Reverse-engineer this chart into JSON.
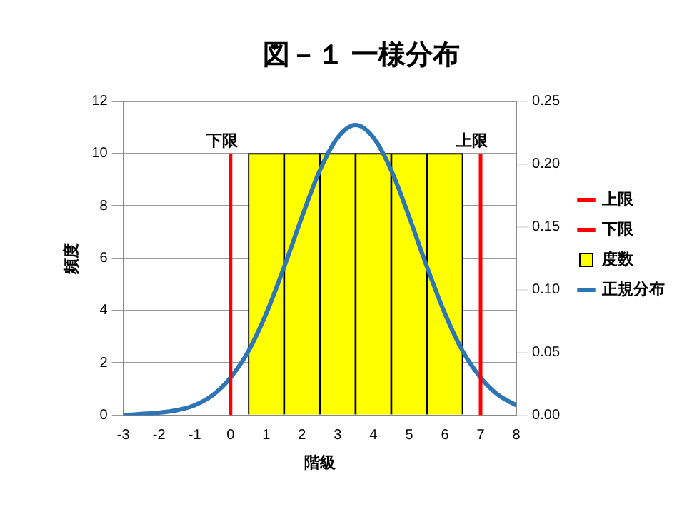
{
  "chart_data": {
    "type": "histogram",
    "title": "図－１ 一様分布",
    "xlabel": "階級",
    "ylabel": "頻度",
    "bins": [
      0.5,
      1.5,
      2.5,
      3.5,
      4.5,
      5.5,
      6.5
    ],
    "series": [
      {
        "name": "度数",
        "color": "#ffff00",
        "values": [
          10,
          10,
          10,
          10,
          10,
          10
        ]
      },
      {
        "name": "正規分布",
        "type": "line",
        "axis": "y2",
        "color": "#2e75b6",
        "x": [
          -3,
          -2.5,
          -2,
          -1.5,
          -1,
          -0.5,
          0,
          0.5,
          1,
          1.5,
          2,
          2.5,
          3,
          3.5,
          4,
          4.5,
          5,
          5.5,
          6,
          6.5,
          7,
          7.5,
          8
        ],
        "values": [
          0.0,
          0.001,
          0.002,
          0.004,
          0.008,
          0.016,
          0.03,
          0.051,
          0.081,
          0.118,
          0.158,
          0.195,
          0.221,
          0.231,
          0.221,
          0.195,
          0.158,
          0.118,
          0.081,
          0.051,
          0.03,
          0.016,
          0.008
        ]
      }
    ],
    "ref_lines": [
      {
        "axis": "x",
        "value": 7,
        "label": "上限",
        "color": "#ff0000"
      },
      {
        "axis": "x",
        "value": 0,
        "label": "下限",
        "color": "#ff0000"
      }
    ],
    "xlim": [
      -3,
      8
    ],
    "xticks": [
      -3,
      -2,
      -1,
      0,
      1,
      2,
      3,
      4,
      5,
      6,
      7,
      8
    ],
    "ylim": [
      0,
      12
    ],
    "yticks": [
      0,
      2,
      4,
      6,
      8,
      10,
      12
    ],
    "y2lim": [
      0,
      0.25
    ],
    "y2ticks": [
      {
        "value": 0,
        "label": "0.00"
      },
      {
        "value": 0.05,
        "label": "0.05"
      },
      {
        "value": 0.1,
        "label": "0.10"
      },
      {
        "value": 0.15,
        "label": "0.15"
      },
      {
        "value": 0.2,
        "label": "0.20"
      },
      {
        "value": 0.25,
        "label": "0.25"
      }
    ],
    "grid": "y",
    "legend": "right"
  }
}
